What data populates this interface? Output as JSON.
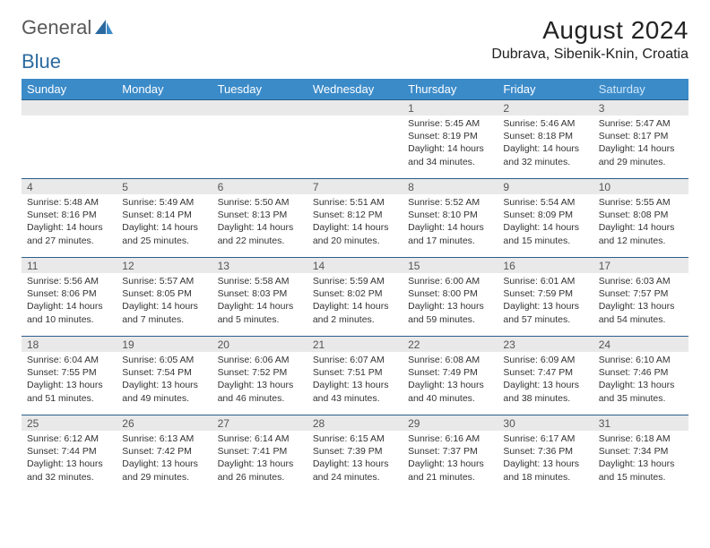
{
  "brand": {
    "general": "General",
    "blue": "Blue"
  },
  "title": "August 2024",
  "location": "Dubrava, Sibenik-Knin, Croatia",
  "colors": {
    "header_bg": "#3b8bc9",
    "header_fg": "#ffffff",
    "daynum_bg": "#e9e9e9",
    "row_border": "#2b5e8a",
    "text": "#333333",
    "saturday_fg": "#cfe6f7"
  },
  "weekdays": [
    "Sunday",
    "Monday",
    "Tuesday",
    "Wednesday",
    "Thursday",
    "Friday",
    "Saturday"
  ],
  "weeks": [
    [
      null,
      null,
      null,
      null,
      {
        "n": "1",
        "sr": "Sunrise: 5:45 AM",
        "ss": "Sunset: 8:19 PM",
        "d1": "Daylight: 14 hours",
        "d2": "and 34 minutes."
      },
      {
        "n": "2",
        "sr": "Sunrise: 5:46 AM",
        "ss": "Sunset: 8:18 PM",
        "d1": "Daylight: 14 hours",
        "d2": "and 32 minutes."
      },
      {
        "n": "3",
        "sr": "Sunrise: 5:47 AM",
        "ss": "Sunset: 8:17 PM",
        "d1": "Daylight: 14 hours",
        "d2": "and 29 minutes."
      }
    ],
    [
      {
        "n": "4",
        "sr": "Sunrise: 5:48 AM",
        "ss": "Sunset: 8:16 PM",
        "d1": "Daylight: 14 hours",
        "d2": "and 27 minutes."
      },
      {
        "n": "5",
        "sr": "Sunrise: 5:49 AM",
        "ss": "Sunset: 8:14 PM",
        "d1": "Daylight: 14 hours",
        "d2": "and 25 minutes."
      },
      {
        "n": "6",
        "sr": "Sunrise: 5:50 AM",
        "ss": "Sunset: 8:13 PM",
        "d1": "Daylight: 14 hours",
        "d2": "and 22 minutes."
      },
      {
        "n": "7",
        "sr": "Sunrise: 5:51 AM",
        "ss": "Sunset: 8:12 PM",
        "d1": "Daylight: 14 hours",
        "d2": "and 20 minutes."
      },
      {
        "n": "8",
        "sr": "Sunrise: 5:52 AM",
        "ss": "Sunset: 8:10 PM",
        "d1": "Daylight: 14 hours",
        "d2": "and 17 minutes."
      },
      {
        "n": "9",
        "sr": "Sunrise: 5:54 AM",
        "ss": "Sunset: 8:09 PM",
        "d1": "Daylight: 14 hours",
        "d2": "and 15 minutes."
      },
      {
        "n": "10",
        "sr": "Sunrise: 5:55 AM",
        "ss": "Sunset: 8:08 PM",
        "d1": "Daylight: 14 hours",
        "d2": "and 12 minutes."
      }
    ],
    [
      {
        "n": "11",
        "sr": "Sunrise: 5:56 AM",
        "ss": "Sunset: 8:06 PM",
        "d1": "Daylight: 14 hours",
        "d2": "and 10 minutes."
      },
      {
        "n": "12",
        "sr": "Sunrise: 5:57 AM",
        "ss": "Sunset: 8:05 PM",
        "d1": "Daylight: 14 hours",
        "d2": "and 7 minutes."
      },
      {
        "n": "13",
        "sr": "Sunrise: 5:58 AM",
        "ss": "Sunset: 8:03 PM",
        "d1": "Daylight: 14 hours",
        "d2": "and 5 minutes."
      },
      {
        "n": "14",
        "sr": "Sunrise: 5:59 AM",
        "ss": "Sunset: 8:02 PM",
        "d1": "Daylight: 14 hours",
        "d2": "and 2 minutes."
      },
      {
        "n": "15",
        "sr": "Sunrise: 6:00 AM",
        "ss": "Sunset: 8:00 PM",
        "d1": "Daylight: 13 hours",
        "d2": "and 59 minutes."
      },
      {
        "n": "16",
        "sr": "Sunrise: 6:01 AM",
        "ss": "Sunset: 7:59 PM",
        "d1": "Daylight: 13 hours",
        "d2": "and 57 minutes."
      },
      {
        "n": "17",
        "sr": "Sunrise: 6:03 AM",
        "ss": "Sunset: 7:57 PM",
        "d1": "Daylight: 13 hours",
        "d2": "and 54 minutes."
      }
    ],
    [
      {
        "n": "18",
        "sr": "Sunrise: 6:04 AM",
        "ss": "Sunset: 7:55 PM",
        "d1": "Daylight: 13 hours",
        "d2": "and 51 minutes."
      },
      {
        "n": "19",
        "sr": "Sunrise: 6:05 AM",
        "ss": "Sunset: 7:54 PM",
        "d1": "Daylight: 13 hours",
        "d2": "and 49 minutes."
      },
      {
        "n": "20",
        "sr": "Sunrise: 6:06 AM",
        "ss": "Sunset: 7:52 PM",
        "d1": "Daylight: 13 hours",
        "d2": "and 46 minutes."
      },
      {
        "n": "21",
        "sr": "Sunrise: 6:07 AM",
        "ss": "Sunset: 7:51 PM",
        "d1": "Daylight: 13 hours",
        "d2": "and 43 minutes."
      },
      {
        "n": "22",
        "sr": "Sunrise: 6:08 AM",
        "ss": "Sunset: 7:49 PM",
        "d1": "Daylight: 13 hours",
        "d2": "and 40 minutes."
      },
      {
        "n": "23",
        "sr": "Sunrise: 6:09 AM",
        "ss": "Sunset: 7:47 PM",
        "d1": "Daylight: 13 hours",
        "d2": "and 38 minutes."
      },
      {
        "n": "24",
        "sr": "Sunrise: 6:10 AM",
        "ss": "Sunset: 7:46 PM",
        "d1": "Daylight: 13 hours",
        "d2": "and 35 minutes."
      }
    ],
    [
      {
        "n": "25",
        "sr": "Sunrise: 6:12 AM",
        "ss": "Sunset: 7:44 PM",
        "d1": "Daylight: 13 hours",
        "d2": "and 32 minutes."
      },
      {
        "n": "26",
        "sr": "Sunrise: 6:13 AM",
        "ss": "Sunset: 7:42 PM",
        "d1": "Daylight: 13 hours",
        "d2": "and 29 minutes."
      },
      {
        "n": "27",
        "sr": "Sunrise: 6:14 AM",
        "ss": "Sunset: 7:41 PM",
        "d1": "Daylight: 13 hours",
        "d2": "and 26 minutes."
      },
      {
        "n": "28",
        "sr": "Sunrise: 6:15 AM",
        "ss": "Sunset: 7:39 PM",
        "d1": "Daylight: 13 hours",
        "d2": "and 24 minutes."
      },
      {
        "n": "29",
        "sr": "Sunrise: 6:16 AM",
        "ss": "Sunset: 7:37 PM",
        "d1": "Daylight: 13 hours",
        "d2": "and 21 minutes."
      },
      {
        "n": "30",
        "sr": "Sunrise: 6:17 AM",
        "ss": "Sunset: 7:36 PM",
        "d1": "Daylight: 13 hours",
        "d2": "and 18 minutes."
      },
      {
        "n": "31",
        "sr": "Sunrise: 6:18 AM",
        "ss": "Sunset: 7:34 PM",
        "d1": "Daylight: 13 hours",
        "d2": "and 15 minutes."
      }
    ]
  ]
}
